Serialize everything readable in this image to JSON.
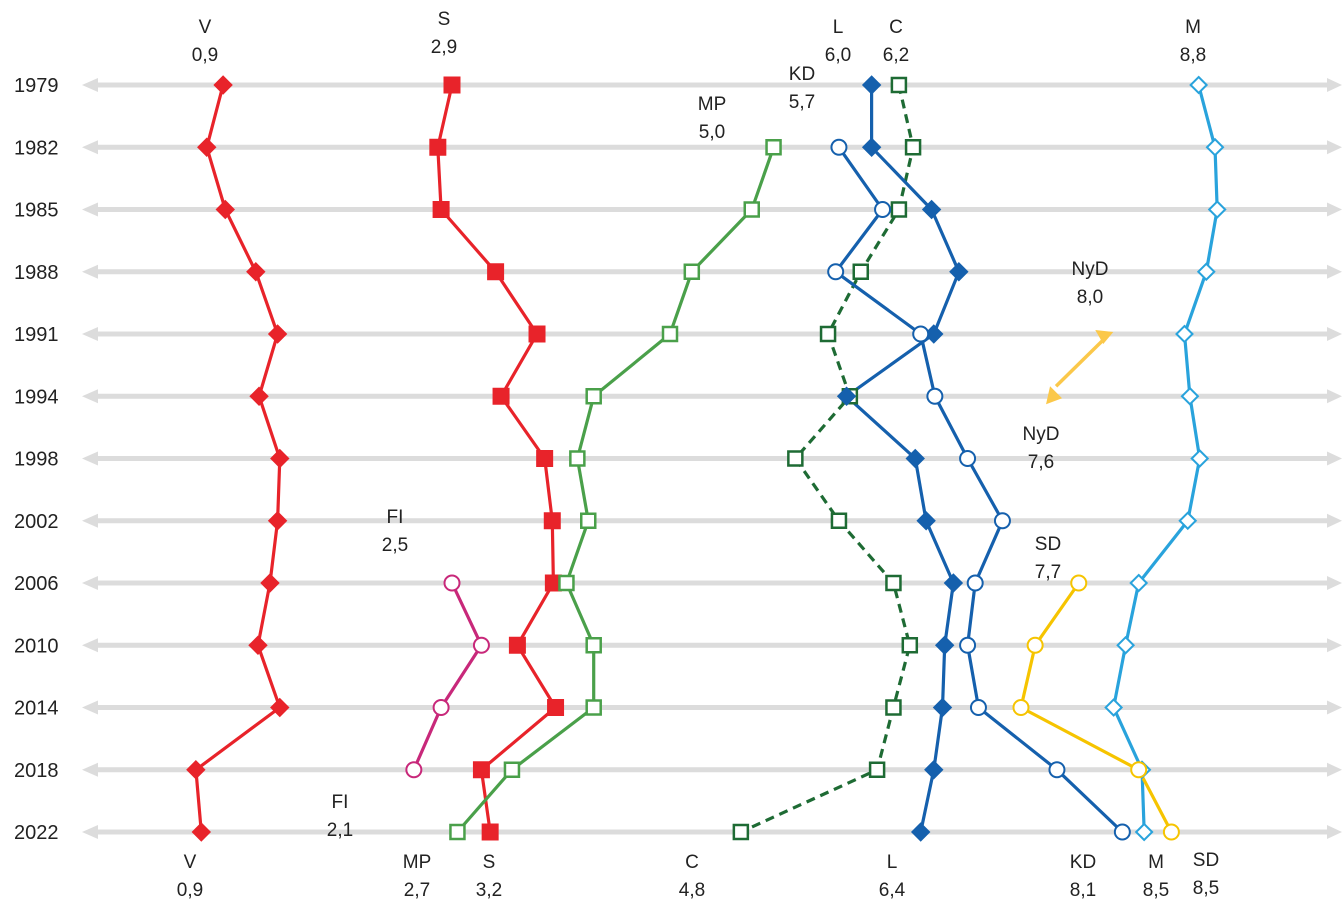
{
  "chart_data": {
    "type": "line",
    "orientation": "vertical-time",
    "x_axis_note": "Years run top to bottom; each series is positioned horizontally by its value",
    "xlim": [
      -0.3,
      10.0
    ],
    "years": [
      "1979",
      "1982",
      "1985",
      "1988",
      "1991",
      "1994",
      "1998",
      "2002",
      "2006",
      "2010",
      "2014",
      "2018",
      "2022"
    ],
    "series": [
      {
        "name": "V",
        "color": "#e8232a",
        "marker": "diamond-filled",
        "dash": false,
        "values": [
          0.9,
          0.75,
          0.92,
          1.2,
          1.4,
          1.23,
          1.42,
          1.4,
          1.33,
          1.22,
          1.42,
          0.65,
          0.7
        ],
        "label_top": {
          "name": "V",
          "value": "0,9"
        },
        "label_bottom": {
          "name": "V",
          "value": "0,9"
        }
      },
      {
        "name": "S",
        "color": "#e8232a",
        "marker": "square-filled",
        "dash": false,
        "values": [
          3.0,
          2.87,
          2.9,
          3.4,
          3.78,
          3.45,
          3.85,
          3.92,
          3.93,
          3.6,
          3.95,
          3.27,
          3.35
        ],
        "label_top": {
          "name": "S",
          "value": "2,9"
        },
        "label_bottom": {
          "name": "S",
          "value": "3,2"
        }
      },
      {
        "name": "MP",
        "color": "#4aa04a",
        "marker": "square-open",
        "dash": false,
        "values": [
          null,
          5.95,
          5.75,
          5.2,
          5.0,
          4.3,
          4.15,
          4.25,
          4.05,
          4.3,
          4.3,
          3.55,
          3.05
        ],
        "label_top": {
          "name": "MP",
          "value": "5,0"
        },
        "label_bottom": {
          "name": "MP",
          "value": "2,7"
        }
      },
      {
        "name": "C",
        "color": "#1e6b34",
        "marker": "square-open",
        "dash": true,
        "values": [
          7.1,
          7.23,
          7.1,
          6.75,
          6.45,
          6.65,
          6.15,
          6.55,
          7.05,
          7.2,
          7.05,
          6.9,
          5.65
        ],
        "label_top": {
          "name": "C",
          "value": "6,2"
        },
        "label_bottom": {
          "name": "C",
          "value": "4,8"
        }
      },
      {
        "name": "L",
        "color": "#1560ad",
        "marker": "diamond-filled",
        "dash": false,
        "values": [
          6.85,
          6.85,
          7.4,
          7.65,
          7.42,
          6.62,
          7.25,
          7.35,
          7.6,
          7.52,
          7.5,
          7.42,
          7.3
        ],
        "label_top": {
          "name": "L",
          "value": "6,0"
        },
        "label_bottom": {
          "name": "L",
          "value": "6,4"
        }
      },
      {
        "name": "KD",
        "color": "#1560ad",
        "marker": "circle-open",
        "dash": false,
        "values": [
          null,
          6.55,
          6.95,
          6.52,
          7.3,
          7.43,
          7.73,
          8.05,
          7.8,
          7.73,
          7.83,
          8.55,
          9.15
        ],
        "label_top": {
          "name": "KD",
          "value": "5,7"
        },
        "label_bottom": {
          "name": "KD",
          "value": "8,1"
        }
      },
      {
        "name": "M",
        "color": "#29a3dc",
        "marker": "diamond-open",
        "dash": false,
        "values": [
          9.85,
          10.0,
          10.02,
          9.92,
          9.72,
          9.77,
          9.86,
          9.75,
          9.3,
          9.18,
          9.07,
          9.33,
          9.35
        ],
        "label_top": {
          "name": "M",
          "value": "8,8"
        },
        "label_bottom": {
          "name": "M",
          "value": "8,5"
        }
      },
      {
        "name": "FI",
        "color": "#c8287a",
        "marker": "circle-open",
        "dash": false,
        "values": [
          null,
          null,
          null,
          null,
          null,
          null,
          null,
          null,
          3.0,
          3.27,
          2.9,
          2.65,
          null
        ],
        "label_top": {
          "name": "FI",
          "value": "2,5"
        },
        "label_bottom": {
          "name": "FI",
          "value": "2,1"
        }
      },
      {
        "name": "SD",
        "color": "#f6c400",
        "marker": "circle-open",
        "dash": false,
        "values": [
          null,
          null,
          null,
          null,
          null,
          null,
          null,
          null,
          8.75,
          8.35,
          8.22,
          9.3,
          9.6
        ],
        "label_top": {
          "name": "SD",
          "value": "7,7"
        },
        "label_bottom": {
          "name": "SD",
          "value": "8,5"
        }
      }
    ],
    "annotations": [
      {
        "series": "NyD",
        "from_year": "1991",
        "to_year": "1994",
        "from_value": 9.03,
        "to_value": 8.45,
        "color": "#fbc84a",
        "label_from": {
          "name": "NyD",
          "value": "8,0"
        },
        "label_to": {
          "name": "NyD",
          "value": "7,6"
        }
      }
    ],
    "grid": true
  }
}
